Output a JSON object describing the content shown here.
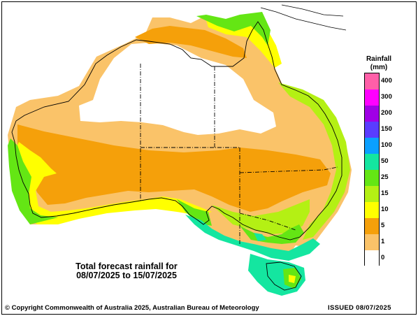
{
  "caption": {
    "line1": "Total forecast rainfall for",
    "line2": "08/07/2025 to 15/07/2025"
  },
  "legend": {
    "title_line1": "Rainfall",
    "title_line2": "(mm)",
    "classes": [
      {
        "label": "400",
        "color": "#ff5fa8"
      },
      {
        "label": "300",
        "color": "#ff00ff"
      },
      {
        "label": "200",
        "color": "#a000e6"
      },
      {
        "label": "150",
        "color": "#5a3cff"
      },
      {
        "label": "100",
        "color": "#0aa0ff"
      },
      {
        "label": "50",
        "color": "#14e6a0"
      },
      {
        "label": "25",
        "color": "#64e614"
      },
      {
        "label": "15",
        "color": "#b4f014"
      },
      {
        "label": "10",
        "color": "#ffff00"
      },
      {
        "label": "5",
        "color": "#f5a00a"
      },
      {
        "label": "1",
        "color": "#fac369"
      },
      {
        "label": "0",
        "color": "#ffffff"
      }
    ]
  },
  "footer": {
    "copyright": "© Copyright Commonwealth of Australia 2025, Australian Bureau of Meteorology",
    "issued": "ISSUED 08/07/2025"
  }
}
